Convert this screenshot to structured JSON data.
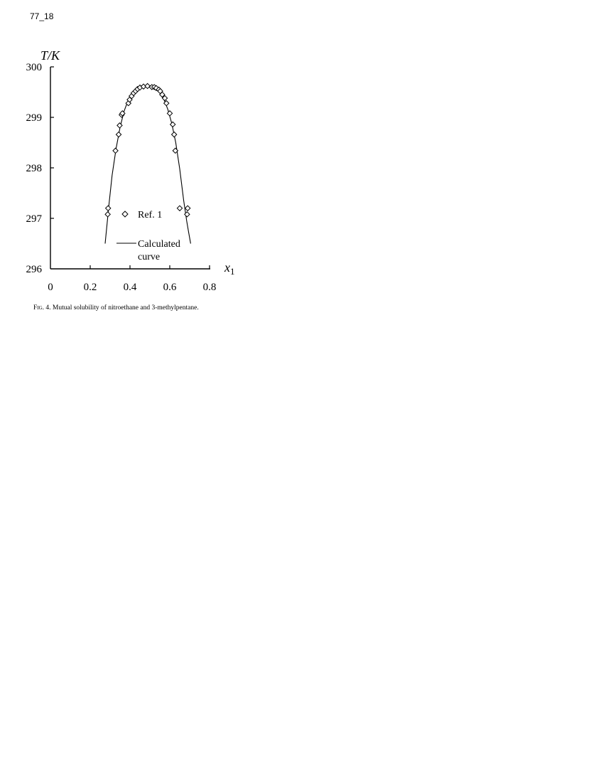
{
  "page_label": "77_18",
  "caption": {
    "fig_label": "Fig. 4.",
    "text": "Mutual solubility of nitroethane and 3-methylpentane."
  },
  "chart_data": {
    "type": "scatter",
    "ylabel": "T/K",
    "xlabel": "x1",
    "xlim": [
      0,
      0.8
    ],
    "ylim": [
      296,
      300
    ],
    "x_ticks": [
      0,
      0.2,
      0.4,
      0.6,
      0.8
    ],
    "y_ticks": [
      296,
      297,
      298,
      299,
      300
    ],
    "legend": {
      "placement": "inside-center-bottom",
      "entries": [
        {
          "name": "Ref. 1",
          "marker": "diamond"
        },
        {
          "name": "Calculated curve",
          "marker": "line"
        }
      ]
    },
    "series": [
      {
        "name": "Ref. 1",
        "kind": "points",
        "x": [
          0.288,
          0.29,
          0.327,
          0.343,
          0.348,
          0.358,
          0.362,
          0.392,
          0.398,
          0.408,
          0.418,
          0.428,
          0.438,
          0.45,
          0.468,
          0.488,
          0.51,
          0.522,
          0.532,
          0.545,
          0.552,
          0.562,
          0.575,
          0.583,
          0.6,
          0.615,
          0.622,
          0.628,
          0.65,
          0.687,
          0.69
        ],
        "y": [
          297.08,
          297.2,
          298.34,
          298.66,
          298.84,
          299.05,
          299.08,
          299.28,
          299.35,
          299.42,
          299.48,
          299.52,
          299.56,
          299.59,
          299.61,
          299.62,
          299.6,
          299.6,
          299.58,
          299.55,
          299.52,
          299.45,
          299.38,
          299.28,
          299.08,
          298.86,
          298.66,
          298.34,
          297.2,
          297.08,
          297.2
        ]
      },
      {
        "name": "Calculated curve",
        "kind": "line",
        "x": [
          0.275,
          0.285,
          0.295,
          0.31,
          0.33,
          0.35,
          0.37,
          0.39,
          0.41,
          0.43,
          0.45,
          0.47,
          0.49,
          0.51,
          0.53,
          0.55,
          0.57,
          0.59,
          0.61,
          0.63,
          0.65,
          0.67,
          0.685,
          0.695,
          0.705
        ],
        "y": [
          296.5,
          296.9,
          297.3,
          297.85,
          298.38,
          298.8,
          299.12,
          299.33,
          299.48,
          299.57,
          299.62,
          299.63,
          299.63,
          299.62,
          299.58,
          299.5,
          299.36,
          299.16,
          298.88,
          298.5,
          297.98,
          297.35,
          296.95,
          296.72,
          296.5
        ]
      }
    ]
  }
}
